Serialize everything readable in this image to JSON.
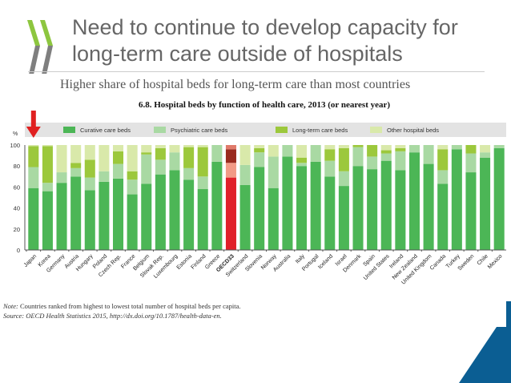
{
  "slide": {
    "title_line1": "Need to continue to develop capacity for",
    "title_line2": "long-term care outside of hospitals",
    "subtitle": "Higher share of hospital beds for long-term care than most countries",
    "note_label": "Note:",
    "note_text": "Countries ranked from highest to lowest total number of hospital beds per capita.",
    "source_label": "Source:",
    "source_text": "OECD Health Statistics 2015, http://dx.doi.org/10.1787/health-data-en.",
    "logo_colors": {
      "green": "#8dc63f",
      "gray": "#808080"
    },
    "corner_color": "#0b5e93"
  },
  "chart_data": {
    "type": "bar",
    "stacked": true,
    "title": "6.8.  Hospital beds by function of health care, 2013 (or nearest year)",
    "ylabel": "%",
    "ylim": [
      0,
      100
    ],
    "yticks": [
      0,
      20,
      40,
      60,
      80,
      100
    ],
    "legend_position": "top",
    "highlight_arrow": "Japan",
    "categories": [
      "Japan",
      "Korea",
      "Germany",
      "Austria",
      "Hungary",
      "Poland",
      "Czech Rep.",
      "France",
      "Belgium",
      "Slovak Rep.",
      "Luxembourg",
      "Estonia",
      "Finland",
      "Greece",
      "OECD33",
      "Switzerland",
      "Slovenia",
      "Norway",
      "Australia",
      "Italy",
      "Portugal",
      "Iceland",
      "Israel",
      "Denmark",
      "Spain",
      "United States",
      "Ireland",
      "New Zealand",
      "United Kingdom",
      "Canada",
      "Turkey",
      "Sweden",
      "Chile",
      "Mexico"
    ],
    "series": [
      {
        "name": "Curative care beds",
        "color": "#4cb656",
        "highlight_color": "#e0202a",
        "values": [
          59,
          56,
          64,
          70,
          57,
          65,
          68,
          53,
          63,
          72,
          76,
          67,
          58,
          84,
          69,
          62,
          79,
          59,
          89,
          80,
          84,
          70,
          61,
          80,
          77,
          85,
          76,
          93,
          82,
          63,
          96,
          74,
          88,
          97
        ]
      },
      {
        "name": "Psychiatric care beds",
        "color": "#a9d9a3",
        "highlight_color": "#f29a86",
        "values": [
          20,
          8,
          10,
          8,
          12,
          10,
          14,
          14,
          28,
          14,
          17,
          11,
          12,
          16,
          14,
          19,
          14,
          30,
          11,
          3,
          16,
          15,
          14,
          18,
          12,
          7,
          18,
          7,
          18,
          13,
          4,
          18,
          5,
          3
        ]
      },
      {
        "name": "Long-term care beds",
        "color": "#9cc83c",
        "highlight_color": "#9a2a1e",
        "values": [
          20,
          35,
          0,
          5,
          17,
          0,
          12,
          8,
          2,
          11,
          0,
          20,
          28,
          0,
          13,
          0,
          4,
          0,
          0,
          5,
          0,
          11,
          22,
          2,
          11,
          3,
          3,
          0,
          0,
          20,
          0,
          8,
          0,
          0
        ]
      },
      {
        "name": "Other hospital beds",
        "color": "#d9e9aa",
        "highlight_color": "#e07a6a",
        "values": [
          1,
          1,
          26,
          17,
          14,
          25,
          6,
          25,
          7,
          3,
          7,
          2,
          2,
          0,
          4,
          19,
          3,
          11,
          0,
          12,
          0,
          4,
          3,
          0,
          0,
          5,
          3,
          0,
          0,
          4,
          0,
          0,
          7,
          0
        ]
      }
    ]
  }
}
